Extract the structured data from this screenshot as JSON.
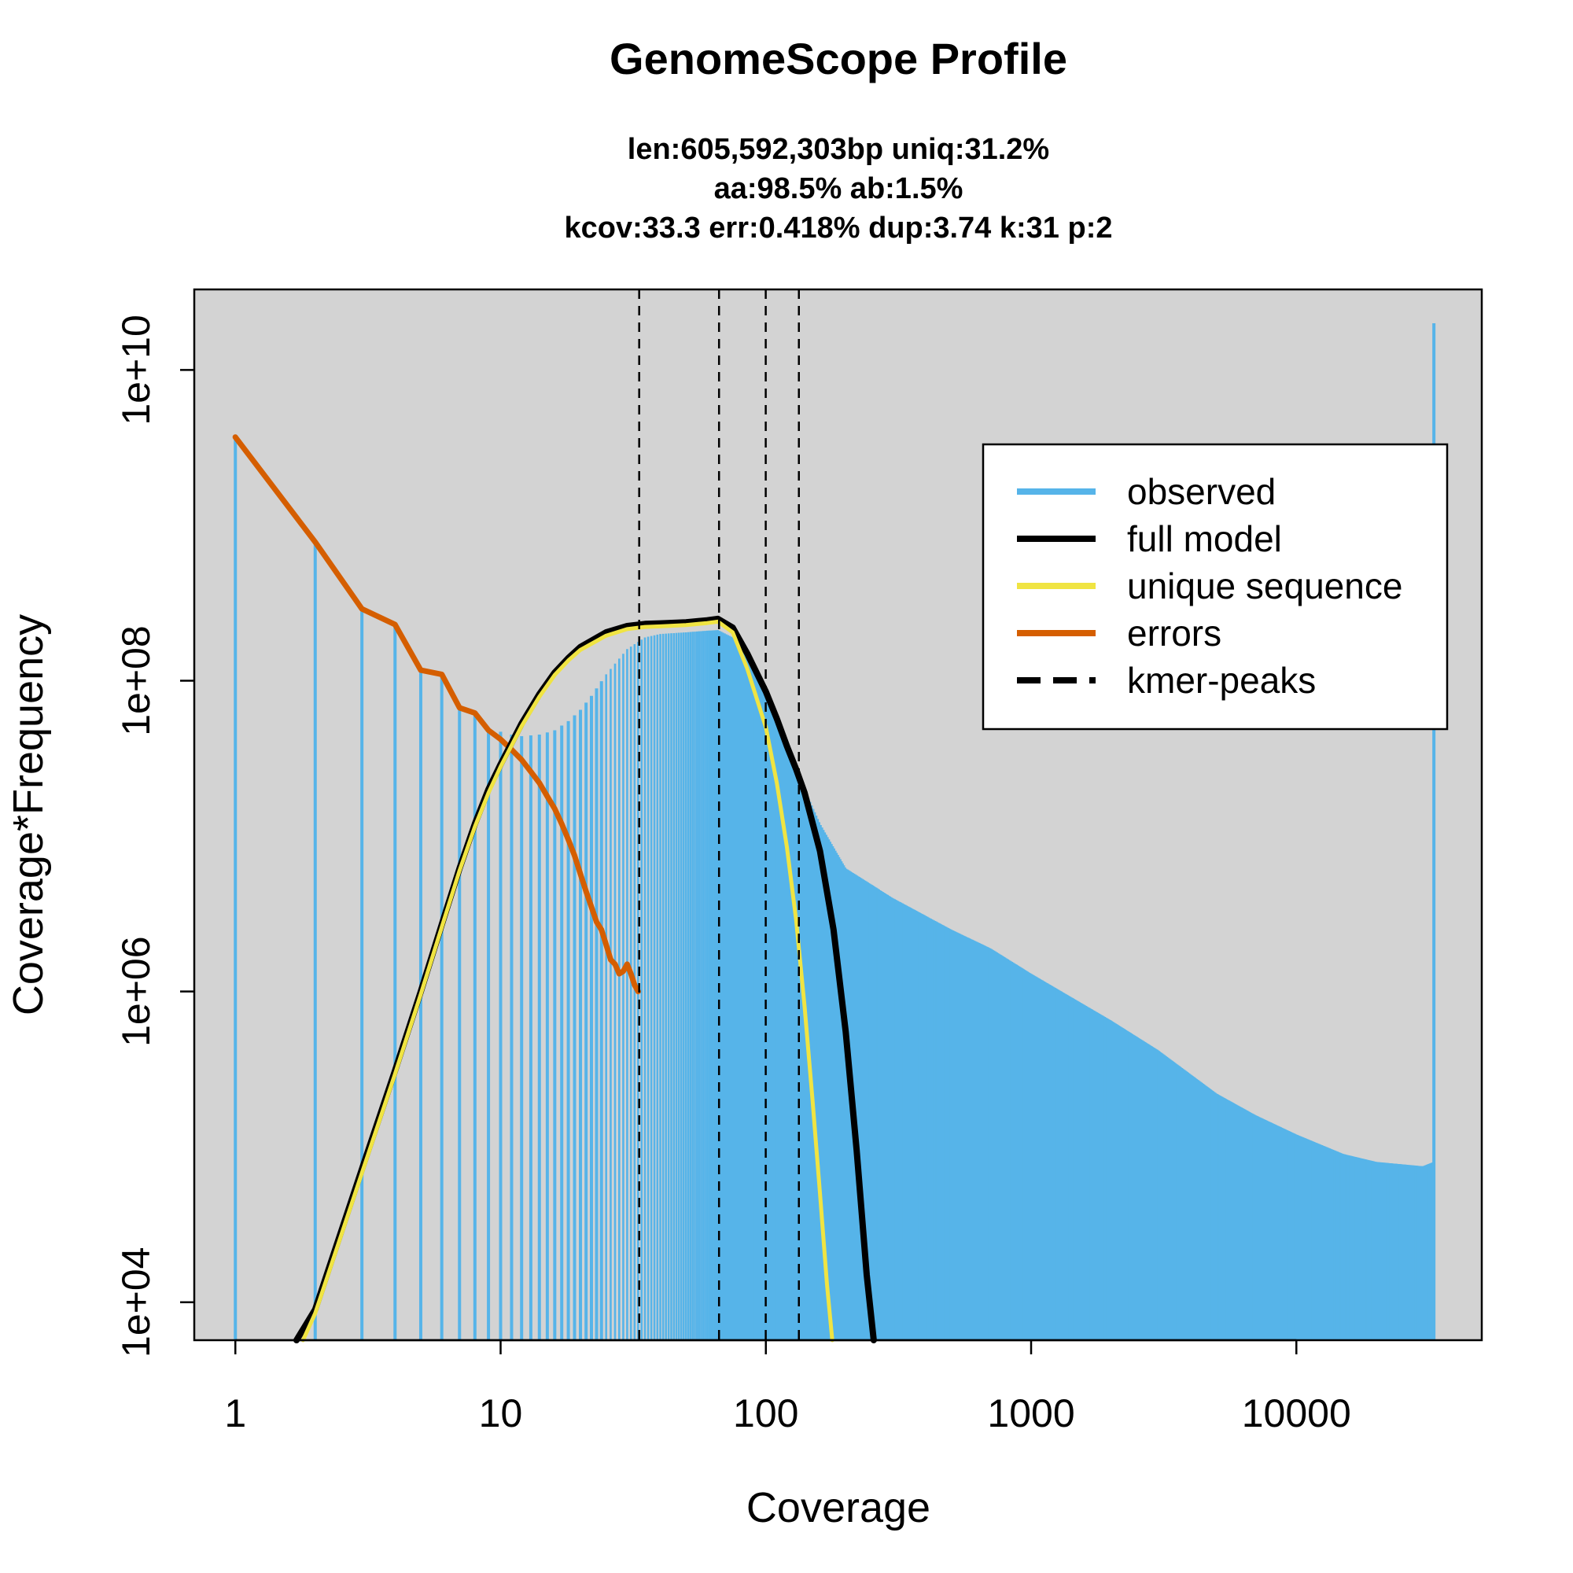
{
  "chart_data": {
    "type": "bar",
    "title": "GenomeScope Profile",
    "subtitle_lines": [
      "len:605,592,303bp uniq:31.2%",
      "aa:98.5% ab:1.5%",
      "kcov:33.3 err:0.418%  dup:3.74  k:31 p:2"
    ],
    "xlabel": "Coverage",
    "ylabel": "Coverage*Frequency",
    "x_scale": "log",
    "y_scale": "log",
    "xlim": [
      0.7,
      50000
    ],
    "ylim": [
      5700,
      33000000000
    ],
    "x_ticks": [
      {
        "value": 1,
        "label": "1"
      },
      {
        "value": 10,
        "label": "10"
      },
      {
        "value": 100,
        "label": "100"
      },
      {
        "value": 1000,
        "label": "1000"
      },
      {
        "value": 10000,
        "label": "10000"
      }
    ],
    "y_ticks": [
      {
        "value": 10000,
        "label": "1e+04"
      },
      {
        "value": 1000000,
        "label": "1e+06"
      },
      {
        "value": 100000000,
        "label": "1e+08"
      },
      {
        "value": 10000000000,
        "label": "1e+10"
      }
    ],
    "grid": false,
    "background": "#d3d3d3",
    "legend_position": "top-right",
    "legend": [
      {
        "label": "observed",
        "color": "#56b4e9",
        "style": "solid"
      },
      {
        "label": "full model",
        "color": "#000000",
        "style": "solid"
      },
      {
        "label": "unique sequence",
        "color": "#f0e442",
        "style": "solid"
      },
      {
        "label": "errors",
        "color": "#d55e00",
        "style": "solid"
      },
      {
        "label": "kmer-peaks",
        "color": "#000000",
        "style": "dashed"
      }
    ],
    "observed_anchors": {
      "x": [
        1,
        2,
        3,
        4,
        5,
        6,
        7,
        8,
        9,
        10,
        11,
        12,
        13,
        14,
        15,
        16,
        18,
        20,
        22,
        25,
        30,
        35,
        40,
        50,
        60,
        66,
        75,
        90,
        100,
        120,
        140,
        160,
        200,
        300,
        500,
        700,
        1000,
        2000,
        3000,
        5000,
        7000,
        10000,
        15000,
        20000,
        30000,
        33000
      ],
      "y": [
        3700000000,
        780000000,
        290000000,
        230000000,
        117000000,
        110000000,
        67000000,
        62000000,
        50000000,
        47000000,
        45000000,
        44000000,
        44500000,
        45000000,
        46500000,
        48000000,
        55000000,
        65000000,
        80000000,
        110000000,
        160000000,
        190000000,
        200000000,
        205000000,
        210000000,
        212000000,
        190000000,
        130000000,
        90000000,
        40000000,
        20000000,
        12000000,
        6200000,
        4000000,
        2500000,
        1900000,
        1300000,
        650000,
        420000,
        220000,
        160000,
        120000,
        90000,
        80000,
        75000,
        80000
      ]
    },
    "observed_last": {
      "x": 33000,
      "y": 20000000000
    },
    "series": [
      {
        "name": "full model",
        "color": "#000000",
        "x": [
          1.7,
          2,
          3,
          4,
          5,
          6,
          7,
          8,
          9,
          10,
          12,
          14,
          16,
          18,
          20,
          25,
          30,
          35,
          40,
          50,
          60,
          66,
          75,
          85,
          100,
          110,
          120,
          130,
          140,
          160,
          180,
          200,
          220,
          240,
          255
        ],
        "y": [
          5700,
          9000,
          72000,
          310000,
          1000000,
          2700000,
          6200000,
          12000000,
          20000000,
          29000000,
          53000000,
          82000000,
          113000000,
          140000000,
          165000000,
          205000000,
          225000000,
          232000000,
          234000000,
          238000000,
          245000000,
          250000000,
          220000000,
          150000000,
          85000000,
          57000000,
          38000000,
          27000000,
          19000000,
          8000000,
          2500000,
          550000,
          95000,
          15000,
          5700
        ]
      },
      {
        "name": "unique sequence",
        "color": "#f0e442",
        "x": [
          1.8,
          2,
          3,
          4,
          5,
          6,
          7,
          8,
          9,
          10,
          12,
          14,
          16,
          18,
          20,
          25,
          30,
          35,
          40,
          50,
          60,
          66,
          75,
          85,
          100,
          110,
          120,
          130,
          140,
          150,
          160,
          170,
          178
        ],
        "y": [
          5700,
          8500,
          68000,
          295000,
          960000,
          2600000,
          6000000,
          11500000,
          19000000,
          28000000,
          51000000,
          79000000,
          109000000,
          135000000,
          158000000,
          195000000,
          215000000,
          222000000,
          224000000,
          228000000,
          235000000,
          240000000,
          205000000,
          120000000,
          50000000,
          22000000,
          8500000,
          2900000,
          800000,
          200000,
          50000,
          13000,
          5700
        ]
      },
      {
        "name": "errors",
        "color": "#d55e00",
        "x": [
          1,
          2,
          3,
          4,
          5,
          6,
          7,
          8,
          9,
          10,
          11,
          12,
          13,
          14,
          15,
          16,
          17,
          18,
          19,
          20,
          21,
          22,
          23,
          24,
          25,
          26,
          27,
          28,
          29,
          30,
          31,
          32,
          33
        ],
        "y": [
          3700000000,
          780000000,
          290000000,
          230000000,
          117000000,
          110000000,
          67000000,
          62000000,
          48000000,
          42000000,
          36000000,
          31000000,
          26000000,
          22000000,
          18000000,
          15000000,
          12000000,
          9500000,
          7500000,
          5700000,
          4400000,
          3500000,
          2800000,
          2500000,
          2000000,
          1600000,
          1500000,
          1300000,
          1350000,
          1500000,
          1300000,
          1100000,
          1000000
        ]
      }
    ],
    "kmer_peaks": [
      33.3,
      66.6,
      99.9,
      133.2
    ]
  }
}
